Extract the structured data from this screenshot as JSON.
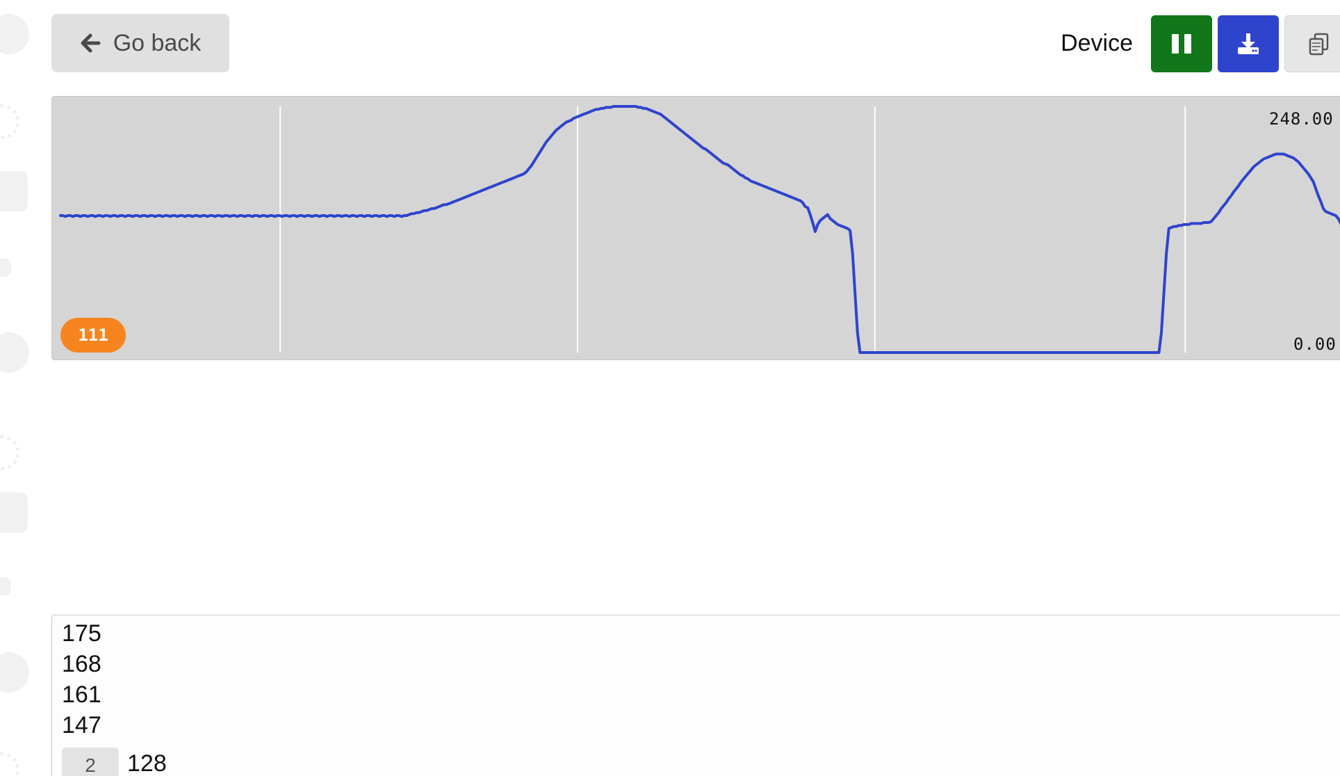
{
  "toolbar": {
    "back_label": "Go back",
    "device_label": "Device",
    "buttons": {
      "pause": "pause-icon",
      "download": "download-icon",
      "copy": "copy-icon"
    },
    "colors": {
      "pause": "#12761b",
      "download": "#2f44cc",
      "copy": "#e6e6e6"
    }
  },
  "plot": {
    "y_max_label": "248.00",
    "y_min_label": "0.00",
    "count_badge": "111",
    "line_color": "#2f44cc",
    "background": "#d5d5d5"
  },
  "chart_data": {
    "type": "line",
    "ylim": [
      0,
      248
    ],
    "grid": "vertical",
    "series": [
      {
        "values": [
          138,
          138,
          137,
          138,
          138,
          137,
          138,
          138,
          137,
          138,
          138,
          137,
          138,
          138,
          137,
          138,
          138,
          137,
          138,
          138,
          137,
          138,
          138,
          137,
          138,
          138,
          137,
          138,
          138,
          137,
          138,
          138,
          137,
          138,
          138,
          137,
          138,
          138,
          137,
          138,
          138,
          137,
          138,
          138,
          137,
          138,
          138,
          137,
          138,
          138,
          137,
          138,
          138,
          137,
          138,
          138,
          137,
          138,
          138,
          137,
          138,
          138,
          137,
          138,
          138,
          137,
          138,
          138,
          137,
          138,
          138,
          137,
          138,
          138,
          137,
          138,
          138,
          137,
          138,
          138,
          137,
          138,
          138,
          137,
          138,
          138,
          137,
          138,
          138,
          137,
          138,
          138,
          137,
          138,
          138,
          137,
          138,
          138,
          137,
          138,
          138,
          137,
          138,
          138,
          137,
          138,
          138,
          137,
          138,
          138,
          137,
          138,
          138,
          137,
          138,
          138,
          137,
          138,
          138,
          137,
          138,
          138,
          137,
          138,
          138,
          137,
          138,
          138,
          137,
          138,
          138,
          137,
          138,
          138,
          137,
          138,
          138,
          137,
          138,
          138,
          139,
          140,
          140,
          141,
          141,
          142,
          143,
          143,
          144,
          145,
          145,
          146,
          147,
          148,
          149,
          149,
          150,
          151,
          152,
          153,
          154,
          155,
          156,
          157,
          158,
          159,
          160,
          161,
          162,
          163,
          164,
          165,
          166,
          167,
          168,
          169,
          170,
          171,
          172,
          173,
          174,
          175,
          176,
          177,
          178,
          179,
          180,
          182,
          185,
          188,
          192,
          196,
          200,
          204,
          208,
          212,
          215,
          218,
          221,
          224,
          226,
          228,
          230,
          232,
          233,
          234,
          236,
          237,
          238,
          239,
          240,
          241,
          242,
          243,
          244,
          245,
          245,
          246,
          246,
          247,
          247,
          247,
          248,
          248,
          248,
          248,
          248,
          248,
          248,
          248,
          248,
          248,
          247,
          247,
          246,
          246,
          245,
          244,
          243,
          242,
          241,
          240,
          238,
          236,
          234,
          232,
          230,
          228,
          226,
          224,
          222,
          220,
          218,
          216,
          214,
          212,
          210,
          208,
          206,
          205,
          203,
          201,
          199,
          197,
          195,
          193,
          191,
          190,
          189,
          187,
          185,
          183,
          181,
          179,
          178,
          176,
          175,
          173,
          172,
          171,
          170,
          169,
          168,
          167,
          166,
          165,
          164,
          163,
          162,
          161,
          160,
          159,
          158,
          157,
          156,
          155,
          154,
          153,
          151,
          147,
          146,
          139,
          131,
          122,
          129,
          133,
          135,
          137,
          139,
          135,
          133,
          131,
          129,
          128,
          127,
          126,
          125,
          123,
          100,
          60,
          20,
          0,
          0,
          0,
          0,
          0,
          0,
          0,
          0,
          0,
          0,
          0,
          0,
          0,
          0,
          0,
          0,
          0,
          0,
          0,
          0,
          0,
          0,
          0,
          0,
          0,
          0,
          0,
          0,
          0,
          0,
          0,
          0,
          0,
          0,
          0,
          0,
          0,
          0,
          0,
          0,
          0,
          0,
          0,
          0,
          0,
          0,
          0,
          0,
          0,
          0,
          0,
          0,
          0,
          0,
          0,
          0,
          0,
          0,
          0,
          0,
          0,
          0,
          0,
          0,
          0,
          0,
          0,
          0,
          0,
          0,
          0,
          0,
          0,
          0,
          0,
          0,
          0,
          0,
          0,
          0,
          0,
          0,
          0,
          0,
          0,
          0,
          0,
          0,
          0,
          0,
          0,
          0,
          0,
          0,
          0,
          0,
          0,
          0,
          0,
          0,
          0,
          0,
          0,
          0,
          0,
          0,
          0,
          0,
          0,
          0,
          0,
          0,
          0,
          0,
          0,
          0,
          0,
          0,
          0,
          0,
          0,
          20,
          60,
          100,
          125,
          126,
          127,
          127,
          128,
          128,
          129,
          129,
          129,
          130,
          130,
          130,
          130,
          130,
          131,
          131,
          131,
          132,
          135,
          138,
          141,
          145,
          148,
          151,
          155,
          158,
          162,
          165,
          168,
          172,
          175,
          178,
          181,
          184,
          187,
          189,
          191,
          193,
          195,
          196,
          197,
          198,
          199,
          200,
          200,
          200,
          200,
          199,
          198,
          197,
          196,
          194,
          192,
          189,
          186,
          183,
          180,
          176,
          172,
          165,
          158,
          152,
          145,
          142,
          141,
          140,
          139,
          138,
          135,
          130,
          126,
          125,
          124,
          124,
          124
        ]
      }
    ]
  },
  "console": {
    "lines": [
      "175",
      "168",
      "161",
      "147"
    ],
    "partial_line": "—",
    "repeat_count": "2",
    "repeat_value": "128"
  }
}
